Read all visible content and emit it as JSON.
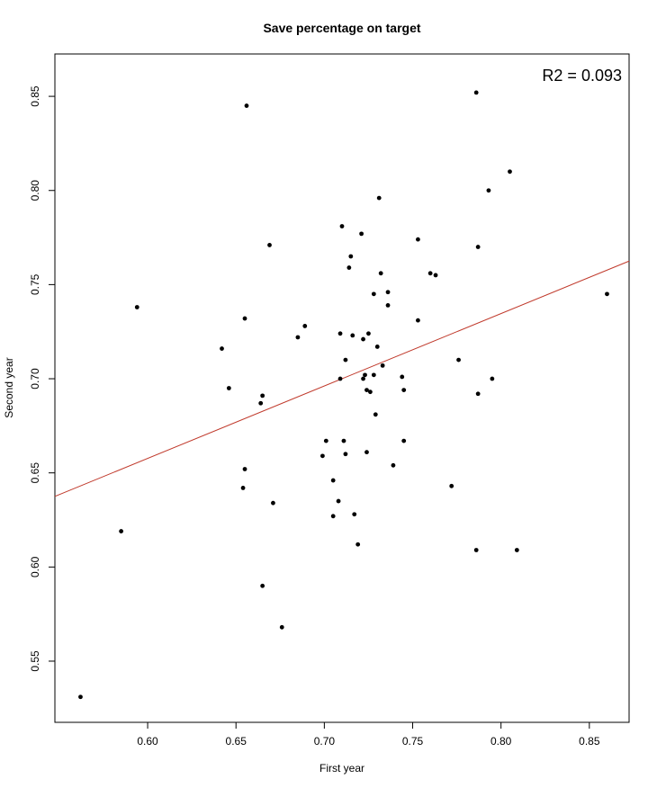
{
  "chart_data": {
    "type": "scatter",
    "title": "Save percentage on target",
    "xlabel": "First year",
    "ylabel": "Second year",
    "annotation": "R2 = 0.093",
    "xlim": [
      0.5475,
      0.8725
    ],
    "ylim": [
      0.5175,
      0.8725
    ],
    "xticks": [
      "0.60",
      "0.65",
      "0.70",
      "0.75",
      "0.80",
      "0.85"
    ],
    "yticks": [
      "0.55",
      "0.60",
      "0.65",
      "0.70",
      "0.75",
      "0.80",
      "0.85"
    ],
    "grid": false,
    "point_color": "#000000",
    "regression_line": {
      "color": "#c0392b",
      "points": [
        [
          0.5475,
          0.6375
        ],
        [
          0.8725,
          0.7625
        ]
      ]
    },
    "points": [
      [
        0.562,
        0.531
      ],
      [
        0.585,
        0.619
      ],
      [
        0.594,
        0.738
      ],
      [
        0.642,
        0.716
      ],
      [
        0.646,
        0.695
      ],
      [
        0.654,
        0.642
      ],
      [
        0.655,
        0.652
      ],
      [
        0.655,
        0.732
      ],
      [
        0.656,
        0.845
      ],
      [
        0.664,
        0.687
      ],
      [
        0.665,
        0.691
      ],
      [
        0.665,
        0.59
      ],
      [
        0.669,
        0.771
      ],
      [
        0.671,
        0.634
      ],
      [
        0.676,
        0.568
      ],
      [
        0.685,
        0.722
      ],
      [
        0.689,
        0.728
      ],
      [
        0.699,
        0.659
      ],
      [
        0.701,
        0.667
      ],
      [
        0.705,
        0.646
      ],
      [
        0.705,
        0.627
      ],
      [
        0.708,
        0.635
      ],
      [
        0.709,
        0.7
      ],
      [
        0.709,
        0.724
      ],
      [
        0.71,
        0.781
      ],
      [
        0.711,
        0.667
      ],
      [
        0.712,
        0.66
      ],
      [
        0.712,
        0.71
      ],
      [
        0.714,
        0.759
      ],
      [
        0.715,
        0.765
      ],
      [
        0.716,
        0.723
      ],
      [
        0.717,
        0.628
      ],
      [
        0.719,
        0.612
      ],
      [
        0.721,
        0.777
      ],
      [
        0.722,
        0.7
      ],
      [
        0.722,
        0.721
      ],
      [
        0.723,
        0.702
      ],
      [
        0.724,
        0.661
      ],
      [
        0.724,
        0.694
      ],
      [
        0.725,
        0.724
      ],
      [
        0.726,
        0.693
      ],
      [
        0.728,
        0.702
      ],
      [
        0.728,
        0.745
      ],
      [
        0.729,
        0.681
      ],
      [
        0.73,
        0.717
      ],
      [
        0.731,
        0.796
      ],
      [
        0.732,
        0.756
      ],
      [
        0.733,
        0.707
      ],
      [
        0.736,
        0.746
      ],
      [
        0.736,
        0.739
      ],
      [
        0.739,
        0.654
      ],
      [
        0.744,
        0.701
      ],
      [
        0.745,
        0.667
      ],
      [
        0.745,
        0.694
      ],
      [
        0.753,
        0.774
      ],
      [
        0.753,
        0.731
      ],
      [
        0.76,
        0.756
      ],
      [
        0.763,
        0.755
      ],
      [
        0.772,
        0.643
      ],
      [
        0.776,
        0.71
      ],
      [
        0.786,
        0.852
      ],
      [
        0.786,
        0.609
      ],
      [
        0.787,
        0.77
      ],
      [
        0.787,
        0.692
      ],
      [
        0.793,
        0.8
      ],
      [
        0.795,
        0.7
      ],
      [
        0.805,
        0.81
      ],
      [
        0.809,
        0.609
      ],
      [
        0.86,
        0.745
      ]
    ]
  }
}
